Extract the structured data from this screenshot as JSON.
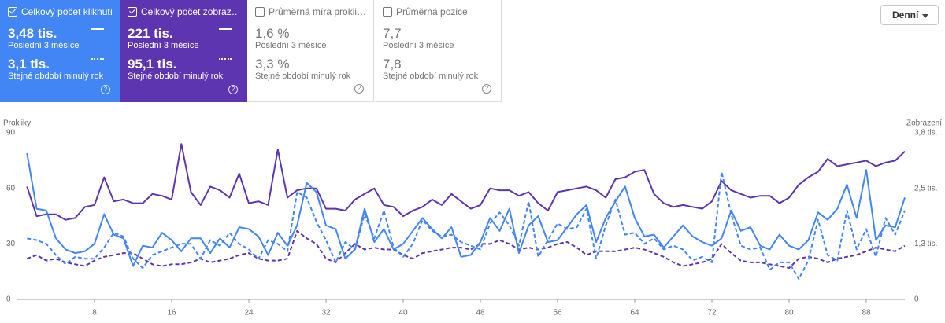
{
  "cards": [
    {
      "title": "Celkový počet kliknutí",
      "value": "3,48 tis.",
      "period": "Poslední 3 měsíce",
      "prev_value": "3,1 tis.",
      "prev_period": "Stejné období minulý rok"
    },
    {
      "title": "Celkový počet zobraz…",
      "value": "221 tis.",
      "period": "Poslední 3 měsíce",
      "prev_value": "95,1 tis.",
      "prev_period": "Stejné období minulý rok"
    },
    {
      "title": "Průměrná míra prokli…",
      "value": "1,6 %",
      "period": "Poslední 3 měsíce",
      "prev_value": "3,3 %",
      "prev_period": "Stejné období minulý rok"
    },
    {
      "title": "Průměrná pozice",
      "value": "7,7",
      "period": "Poslední 3 měsíce",
      "prev_value": "7,8",
      "prev_period": "Stejné období minulý rok"
    }
  ],
  "dropdown": "Denní",
  "chart_data": {
    "type": "line",
    "ylabel": "Prokliky",
    "y2label": "Zobrazení",
    "xlim": [
      0,
      92
    ],
    "xticks": [
      8,
      16,
      24,
      32,
      40,
      48,
      56,
      64,
      72,
      80,
      88
    ],
    "ylim": [
      0,
      90
    ],
    "yticks": [
      0,
      30,
      60,
      90
    ],
    "y2lim": [
      0,
      3800
    ],
    "y2ticks": [
      0,
      {
        "value": 1267,
        "label": "1,3 tis."
      },
      {
        "value": 2533,
        "label": "2,5 tis."
      },
      {
        "value": 3800,
        "label": "3,8 tis."
      }
    ],
    "grid": false,
    "x": [
      1,
      2,
      3,
      4,
      5,
      6,
      7,
      8,
      9,
      10,
      11,
      12,
      13,
      14,
      15,
      16,
      17,
      18,
      19,
      20,
      21,
      22,
      23,
      24,
      25,
      26,
      27,
      28,
      29,
      30,
      31,
      32,
      33,
      34,
      35,
      36,
      37,
      38,
      39,
      40,
      41,
      42,
      43,
      44,
      45,
      46,
      47,
      48,
      49,
      50,
      51,
      52,
      53,
      54,
      55,
      56,
      57,
      58,
      59,
      60,
      61,
      62,
      63,
      64,
      65,
      66,
      67,
      68,
      69,
      70,
      71,
      72,
      73,
      74,
      75,
      76,
      77,
      78,
      79,
      80,
      81,
      82,
      83,
      84,
      85,
      86,
      87,
      88,
      89,
      90,
      91,
      92
    ],
    "series": [
      {
        "color": "#5e35b1",
        "dashed": false,
        "axis": "y2",
        "values": [
          2574,
          1899,
          1941,
          1941,
          1815,
          1857,
          2110,
          2152,
          2785,
          2237,
          2279,
          2194,
          2194,
          2405,
          2363,
          2279,
          3545,
          2448,
          2152,
          2574,
          2490,
          2321,
          2870,
          2194,
          2237,
          2152,
          3418,
          2321,
          2490,
          2532,
          2532,
          2068,
          2068,
          2026,
          2279,
          2405,
          2532,
          2152,
          2110,
          1899,
          2026,
          2110,
          2279,
          2152,
          2405,
          2237,
          2068,
          2152,
          2532,
          2490,
          2490,
          2363,
          2448,
          2194,
          2026,
          2448,
          2490,
          2532,
          2574,
          2490,
          2321,
          2743,
          2785,
          2912,
          2954,
          2405,
          2194,
          2110,
          2152,
          2110,
          2068,
          2237,
          2701,
          2490,
          2405,
          2321,
          2363,
          2363,
          2194,
          2321,
          2616,
          2785,
          2912,
          3207,
          3038,
          3081,
          3123,
          3165,
          3038,
          3123,
          3165,
          3376
        ]
      },
      {
        "color": "#5e35b1",
        "dashed": true,
        "axis": "y2",
        "values": [
          928,
          1013,
          886,
          928,
          844,
          802,
          760,
          886,
          971,
          1013,
          1055,
          1055,
          928,
          802,
          760,
          802,
          802,
          844,
          928,
          844,
          886,
          928,
          1013,
          1055,
          928,
          886,
          886,
          928,
          1561,
          1393,
          1266,
          928,
          844,
          1055,
          1266,
          1139,
          1182,
          1139,
          1139,
          1013,
          928,
          1055,
          1097,
          1139,
          1182,
          1182,
          1139,
          1266,
          1266,
          1350,
          1266,
          1139,
          1182,
          1139,
          1182,
          1266,
          1308,
          1182,
          1013,
          1097,
          1097,
          1097,
          1139,
          1182,
          1139,
          1055,
          971,
          844,
          760,
          802,
          844,
          928,
          1266,
          1055,
          886,
          844,
          844,
          802,
          760,
          717,
          928,
          971,
          928,
          844,
          928,
          971,
          1013,
          1097,
          1182,
          1139,
          1097,
          1224
        ]
      },
      {
        "color": "#4285f4",
        "dashed": false,
        "axis": "y",
        "values": [
          79,
          49,
          48,
          33,
          27,
          25,
          26,
          30,
          46,
          35,
          33,
          18,
          29,
          28,
          36,
          32,
          26,
          33,
          33,
          25,
          33,
          28,
          39,
          38,
          34,
          24,
          36,
          29,
          40,
          63,
          58,
          40,
          38,
          22,
          27,
          49,
          31,
          38,
          27,
          30,
          37,
          44,
          38,
          33,
          39,
          23,
          24,
          31,
          44,
          37,
          49,
          25,
          40,
          45,
          31,
          32,
          39,
          46,
          51,
          31,
          44,
          53,
          61,
          44,
          34,
          35,
          28,
          34,
          40,
          34,
          31,
          29,
          33,
          48,
          37,
          39,
          29,
          27,
          35,
          29,
          27,
          32,
          47,
          43,
          49,
          62,
          44,
          70,
          32,
          40,
          39,
          55
        ]
      },
      {
        "color": "#4285f4",
        "dashed": true,
        "axis": "y",
        "values": [
          33,
          32,
          30,
          24,
          19,
          23,
          22,
          22,
          28,
          36,
          34,
          22,
          17,
          24,
          26,
          28,
          30,
          30,
          22,
          32,
          29,
          36,
          30,
          27,
          22,
          32,
          30,
          26,
          58,
          55,
          42,
          32,
          20,
          31,
          27,
          46,
          33,
          48,
          28,
          23,
          30,
          43,
          37,
          34,
          35,
          31,
          29,
          27,
          41,
          47,
          40,
          29,
          53,
          23,
          32,
          41,
          38,
          39,
          49,
          22,
          40,
          54,
          35,
          36,
          30,
          33,
          27,
          29,
          27,
          21,
          23,
          20,
          69,
          46,
          29,
          27,
          28,
          16,
          20,
          20,
          11,
          21,
          43,
          24,
          21,
          48,
          27,
          38,
          23,
          44,
          35,
          48
        ]
      }
    ]
  }
}
